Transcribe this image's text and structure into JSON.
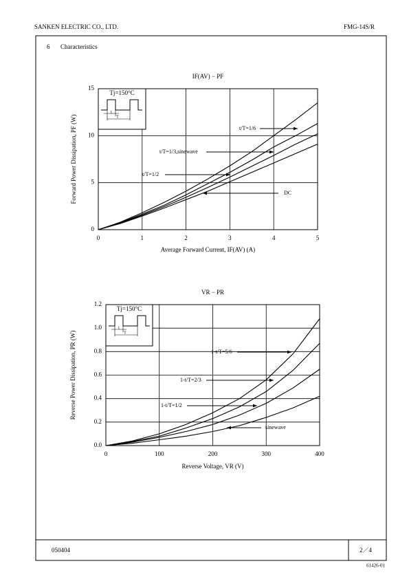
{
  "header": {
    "company": "SANKEN ELECTRIC CO., LTD.",
    "part": "FMG-14S/R"
  },
  "section": {
    "number": "6",
    "title": "Characteristics"
  },
  "footer": {
    "date": "050404",
    "page": "2／4",
    "code": "61426-01"
  },
  "chart_data": [
    {
      "type": "line",
      "title": "IF(AV) − PF",
      "x_label": "Average Forward Current, IF(AV) (A)",
      "y_label": "Forward Power Dissipation, PF (W)",
      "inset": {
        "text": "Tj=150°C",
        "t": "t",
        "T": "T"
      },
      "x": [
        0,
        0.5,
        1,
        1.5,
        2,
        2.5,
        3,
        3.5,
        4,
        4.5,
        5
      ],
      "series": [
        {
          "name": "t/T=1/6",
          "color": "#000000",
          "values": [
            0,
            0.8,
            1.8,
            2.9,
            4.1,
            5.4,
            6.8,
            8.3,
            10.0,
            11.7,
            13.5
          ]
        },
        {
          "name": "t/T=1/3,sinewave",
          "color": "#000000",
          "values": [
            0,
            0.75,
            1.65,
            2.6,
            3.7,
            4.9,
            6.1,
            7.4,
            8.8,
            10.0,
            11.3
          ]
        },
        {
          "name": "t/T=1/2",
          "color": "#000000",
          "values": [
            0,
            0.7,
            1.55,
            2.45,
            3.45,
            4.5,
            5.6,
            6.75,
            7.9,
            9.1,
            10.2
          ]
        },
        {
          "name": "DC",
          "color": "#000000",
          "values": [
            0,
            0.65,
            1.45,
            2.3,
            3.2,
            4.1,
            5.1,
            6.1,
            7.1,
            8.1,
            9.1
          ]
        }
      ],
      "xlim": [
        0,
        5
      ],
      "xticks": [
        0,
        1,
        2,
        3,
        4,
        5
      ],
      "ylim": [
        0,
        15
      ],
      "yticks": [
        0,
        5,
        10,
        15
      ],
      "grid": true
    },
    {
      "type": "line",
      "title": "VR − PR",
      "x_label": "Reverse Voltage, VR (V)",
      "y_label": "Reverse Power Dissipation, PR (W)",
      "inset": {
        "text": "Tj=150°C",
        "t": "t",
        "T": "T"
      },
      "x": [
        0,
        50,
        100,
        150,
        200,
        250,
        300,
        350,
        400
      ],
      "series": [
        {
          "name": "1-t/T=5/6",
          "color": "#000000",
          "values": [
            0,
            0.04,
            0.1,
            0.18,
            0.28,
            0.4,
            0.56,
            0.78,
            1.08
          ]
        },
        {
          "name": "1-t/T=2/3",
          "color": "#000000",
          "values": [
            0,
            0.035,
            0.08,
            0.15,
            0.23,
            0.33,
            0.46,
            0.64,
            0.87
          ]
        },
        {
          "name": "1-t/T=1/2",
          "color": "#000000",
          "values": [
            0,
            0.03,
            0.07,
            0.12,
            0.18,
            0.26,
            0.36,
            0.49,
            0.65
          ]
        },
        {
          "name": "sinewave",
          "color": "#000000",
          "values": [
            0,
            0.02,
            0.05,
            0.08,
            0.12,
            0.17,
            0.24,
            0.32,
            0.42
          ]
        }
      ],
      "xlim": [
        0,
        400
      ],
      "xticks": [
        0,
        100,
        200,
        300,
        400
      ],
      "ylim": [
        0,
        1.2
      ],
      "yticks": [
        {
          "value": 0,
          "label": "0.0"
        },
        0.2,
        0.4,
        0.6,
        0.8,
        {
          "value": 1,
          "label": "1.0"
        },
        1.2
      ],
      "grid": true
    }
  ]
}
